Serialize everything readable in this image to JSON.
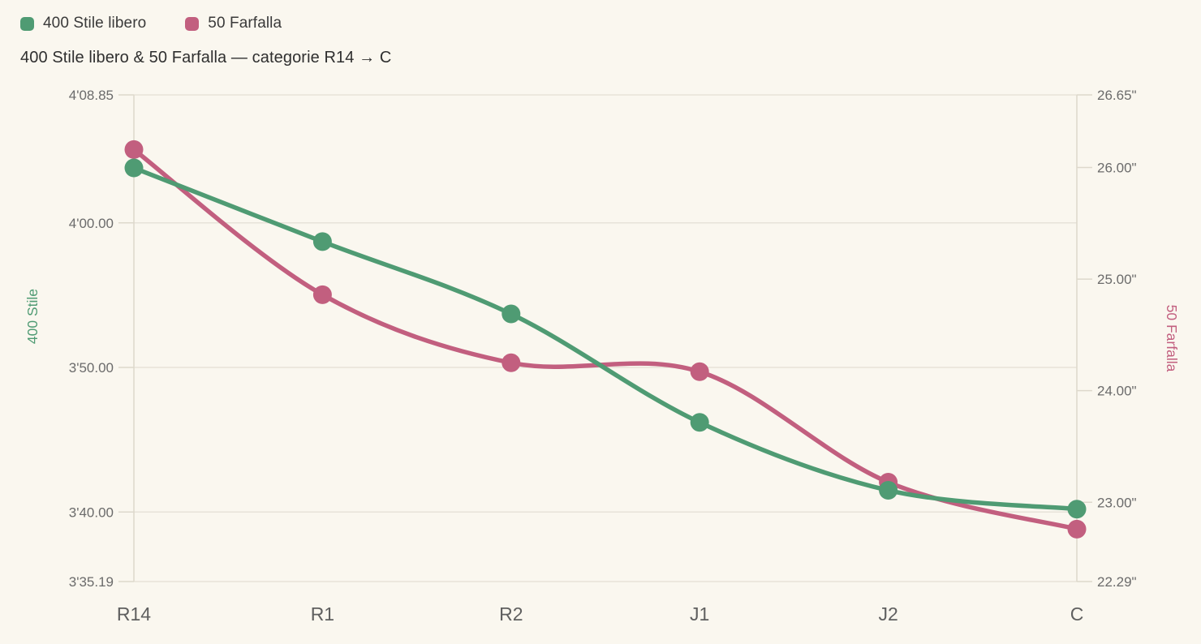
{
  "title": "400 Stile libero & 50 Farfalla — categorie R14 → C",
  "legend": {
    "items": [
      {
        "label": "400 Stile libero",
        "color": "#4f9b73"
      },
      {
        "label": "50 Farfalla",
        "color": "#c25f7f"
      }
    ]
  },
  "colors": {
    "background": "#faf7ef",
    "grid": "#e7e3d9",
    "axis_line": "#ddd8cc",
    "tick_text": "#6b6b6b",
    "x_label_text": "#5f5f5f",
    "title_text": "#2f2f2f",
    "green": "#4f9b73",
    "pink": "#c25f7f"
  },
  "chart_data": {
    "type": "line",
    "title": "400 Stile libero & 50 Farfalla — categorie R14 → C",
    "categories": [
      "R14",
      "R1",
      "R2",
      "J1",
      "J2",
      "C"
    ],
    "series": [
      {
        "name": "400 Stile libero",
        "axis": "left",
        "color": "#4f9b73",
        "unit": "seconds",
        "values": [
          243.8,
          238.7,
          233.7,
          226.2,
          221.5,
          220.2
        ]
      },
      {
        "name": "50 Farfalla",
        "axis": "right",
        "color": "#c25f7f",
        "unit": "seconds",
        "values": [
          26.16,
          24.86,
          24.25,
          24.17,
          23.18,
          22.76
        ]
      }
    ],
    "left_axis": {
      "title": "400 Stile",
      "min": 215.19,
      "max": 248.85,
      "ticks": [
        {
          "label": "4'08.85",
          "value": 248.85
        },
        {
          "label": "4'00.00",
          "value": 240.0
        },
        {
          "label": "3'50.00",
          "value": 230.0
        },
        {
          "label": "3'40.00",
          "value": 220.0
        },
        {
          "label": "3'35.19",
          "value": 215.19
        }
      ]
    },
    "right_axis": {
      "title": "50 Farfalla",
      "min": 22.29,
      "max": 26.65,
      "ticks": [
        {
          "label": "26.65\"",
          "value": 26.65
        },
        {
          "label": "26.00\"",
          "value": 26.0
        },
        {
          "label": "25.00\"",
          "value": 25.0
        },
        {
          "label": "24.00\"",
          "value": 24.0
        },
        {
          "label": "23.00\"",
          "value": 23.0
        },
        {
          "label": "22.29\"",
          "value": 22.29
        }
      ]
    },
    "grid": "horizontal-only",
    "legend_position": "top-left",
    "point_radius": 11.5,
    "line_width": 5.5
  }
}
